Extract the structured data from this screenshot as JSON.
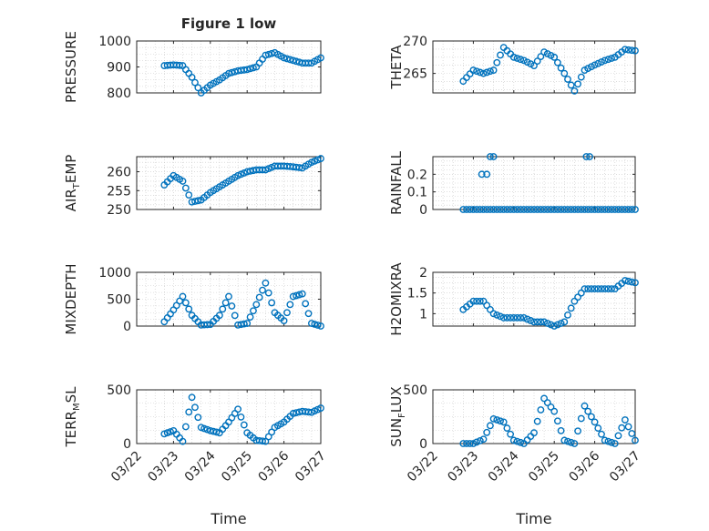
{
  "figure": {
    "title": "Figure 1 low"
  },
  "chart_data": [
    {
      "type": "scatter",
      "title": "Figure 1 low",
      "ylabel": "PRESSURE",
      "xlabel": "",
      "xlim": [
        "03/22",
        "03/27"
      ],
      "ylim": [
        800,
        1000
      ],
      "yticks": [
        "800",
        "900",
        "1000"
      ],
      "grid": true,
      "series": [
        {
          "x": [
            "03/22 18:00",
            "03/23 00:00",
            "03/23 06:00",
            "03/23 12:00",
            "03/23 18:00",
            "03/24 00:00",
            "03/24 06:00",
            "03/24 12:00",
            "03/24 18:00",
            "03/25 00:00",
            "03/25 06:00",
            "03/25 12:00",
            "03/25 18:00",
            "03/26 00:00",
            "03/26 06:00",
            "03/26 12:00",
            "03/26 18:00",
            "03/27 00:00"
          ],
          "values": [
            905,
            908,
            905,
            860,
            800,
            830,
            850,
            875,
            885,
            890,
            900,
            945,
            955,
            935,
            925,
            915,
            915,
            935
          ]
        }
      ]
    },
    {
      "type": "scatter",
      "ylabel": "THETA",
      "xlim": [
        "03/22",
        "03/27"
      ],
      "ylim": [
        262,
        270
      ],
      "yticks": [
        "265",
        "270"
      ],
      "grid": true,
      "series": [
        {
          "x": [
            "03/22 18:00",
            "03/23 00:00",
            "03/23 06:00",
            "03/23 12:00",
            "03/23 18:00",
            "03/24 00:00",
            "03/24 06:00",
            "03/24 12:00",
            "03/24 18:00",
            "03/25 00:00",
            "03/25 06:00",
            "03/25 12:00",
            "03/25 18:00",
            "03/26 00:00",
            "03/26 06:00",
            "03/26 12:00",
            "03/26 18:00",
            "03/27 00:00"
          ],
          "values": [
            263.8,
            265.5,
            265.0,
            265.5,
            269.0,
            267.5,
            267.0,
            266.2,
            268.3,
            267.5,
            265.0,
            262.3,
            265.5,
            266.3,
            267.0,
            267.5,
            268.7,
            268.5
          ]
        }
      ]
    },
    {
      "type": "scatter",
      "ylabel": "AIR_TEMP",
      "xlim": [
        "03/22",
        "03/27"
      ],
      "ylim": [
        250,
        264
      ],
      "yticks": [
        "250",
        "255",
        "260"
      ],
      "grid": true,
      "series": [
        {
          "x": [
            "03/22 18:00",
            "03/23 00:00",
            "03/23 06:00",
            "03/23 12:00",
            "03/23 18:00",
            "03/24 00:00",
            "03/24 06:00",
            "03/24 12:00",
            "03/24 18:00",
            "03/25 00:00",
            "03/25 06:00",
            "03/25 12:00",
            "03/25 18:00",
            "03/26 00:00",
            "03/26 06:00",
            "03/26 12:00",
            "03/26 18:00",
            "03/27 00:00"
          ],
          "values": [
            256.5,
            259,
            257.5,
            252,
            252.5,
            254.5,
            256,
            257.5,
            259,
            260,
            260.5,
            260.5,
            261.5,
            261.5,
            261.3,
            261,
            262.5,
            263.5
          ]
        }
      ]
    },
    {
      "type": "scatter",
      "ylabel": "RAINFALL",
      "xlim": [
        "03/22",
        "03/27"
      ],
      "ylim": [
        0,
        0.3
      ],
      "yticks": [
        "0",
        "0.1",
        "0.2"
      ],
      "grid": true,
      "series": [
        {
          "x": [
            "03/23 00:00",
            "03/23 06:00",
            "03/23 12:00",
            "03/23 18:00",
            "03/24 00:00",
            "03/24 12:00",
            "03/25 00:00",
            "03/25 12:00",
            "03/26 00:00",
            "03/26 12:00",
            "03/27 00:00",
            "03/23 05:00",
            "03/23 08:00",
            "03/23 10:00",
            "03/23 12:00",
            "03/25 19:00",
            "03/25 21:00",
            "03/23 06:00",
            "03/23 08:00"
          ],
          "values": [
            0,
            0,
            0,
            0,
            0,
            0,
            0,
            0,
            0,
            0,
            0,
            0.2,
            0.2,
            0.3,
            0.3,
            0.3,
            0.3,
            0,
            0
          ]
        }
      ]
    },
    {
      "type": "scatter",
      "ylabel": "MIXDEPTH",
      "xlim": [
        "03/22",
        "03/27"
      ],
      "ylim": [
        0,
        1000
      ],
      "yticks": [
        "0",
        "500",
        "1000"
      ],
      "grid": true,
      "series": [
        {
          "x": [
            "03/22 18:00",
            "03/23 00:00",
            "03/23 06:00",
            "03/23 12:00",
            "03/23 18:00",
            "03/24 00:00",
            "03/24 06:00",
            "03/24 12:00",
            "03/24 18:00",
            "03/25 00:00",
            "03/25 06:00",
            "03/25 12:00",
            "03/25 18:00",
            "03/26 00:00",
            "03/26 06:00",
            "03/26 12:00",
            "03/26 18:00",
            "03/27 00:00"
          ],
          "values": [
            80,
            300,
            550,
            200,
            20,
            30,
            200,
            550,
            20,
            50,
            400,
            800,
            250,
            100,
            550,
            600,
            50,
            0
          ]
        }
      ]
    },
    {
      "type": "scatter",
      "ylabel": "H2OMIXRA",
      "xlim": [
        "03/22",
        "03/27"
      ],
      "ylim": [
        0.7,
        2.0
      ],
      "yticks": [
        "1",
        "1.5",
        "2"
      ],
      "grid": true,
      "series": [
        {
          "x": [
            "03/22 18:00",
            "03/23 00:00",
            "03/23 06:00",
            "03/23 12:00",
            "03/23 18:00",
            "03/24 00:00",
            "03/24 06:00",
            "03/24 12:00",
            "03/24 18:00",
            "03/25 00:00",
            "03/25 06:00",
            "03/25 12:00",
            "03/25 18:00",
            "03/26 00:00",
            "03/26 06:00",
            "03/26 12:00",
            "03/26 18:00",
            "03/27 00:00"
          ],
          "values": [
            1.1,
            1.3,
            1.3,
            1.0,
            0.9,
            0.9,
            0.9,
            0.8,
            0.8,
            0.7,
            0.8,
            1.3,
            1.6,
            1.6,
            1.6,
            1.6,
            1.8,
            1.75
          ]
        }
      ]
    },
    {
      "type": "scatter",
      "ylabel": "TERR_MSL",
      "xlabel": "Time",
      "xlim": [
        "03/22",
        "03/27"
      ],
      "ylim": [
        0,
        500
      ],
      "yticks": [
        "0",
        "500"
      ],
      "xticks": [
        "03/22",
        "03/23",
        "03/24",
        "03/25",
        "03/26",
        "03/27"
      ],
      "grid": true,
      "series": [
        {
          "x": [
            "03/22 18:00",
            "03/23 00:00",
            "03/23 06:00",
            "03/23 12:00",
            "03/23 18:00",
            "03/24 00:00",
            "03/24 06:00",
            "03/24 12:00",
            "03/24 18:00",
            "03/25 00:00",
            "03/25 06:00",
            "03/25 12:00",
            "03/25 18:00",
            "03/26 00:00",
            "03/26 06:00",
            "03/26 12:00",
            "03/26 18:00",
            "03/27 00:00"
          ],
          "values": [
            90,
            120,
            20,
            430,
            150,
            120,
            100,
            200,
            320,
            100,
            30,
            20,
            150,
            200,
            280,
            300,
            290,
            330
          ]
        }
      ]
    },
    {
      "type": "scatter",
      "ylabel": "SUN_FLUX",
      "xlabel": "Time",
      "xlim": [
        "03/22",
        "03/27"
      ],
      "ylim": [
        0,
        500
      ],
      "yticks": [
        "0",
        "500"
      ],
      "xticks": [
        "03/22",
        "03/23",
        "03/24",
        "03/25",
        "03/26",
        "03/27"
      ],
      "grid": true,
      "series": [
        {
          "x": [
            "03/22 18:00",
            "03/23 00:00",
            "03/23 06:00",
            "03/23 12:00",
            "03/23 18:00",
            "03/24 00:00",
            "03/24 06:00",
            "03/24 12:00",
            "03/24 18:00",
            "03/25 00:00",
            "03/25 06:00",
            "03/25 12:00",
            "03/25 18:00",
            "03/26 00:00",
            "03/26 06:00",
            "03/26 12:00",
            "03/26 18:00",
            "03/27 00:00"
          ],
          "values": [
            0,
            0,
            40,
            230,
            200,
            30,
            0,
            100,
            420,
            300,
            30,
            0,
            350,
            200,
            30,
            0,
            220,
            30
          ]
        }
      ]
    }
  ],
  "colors": {
    "marker": "#0072bd",
    "grid": "#c8c8c8",
    "axis": "#262626"
  }
}
